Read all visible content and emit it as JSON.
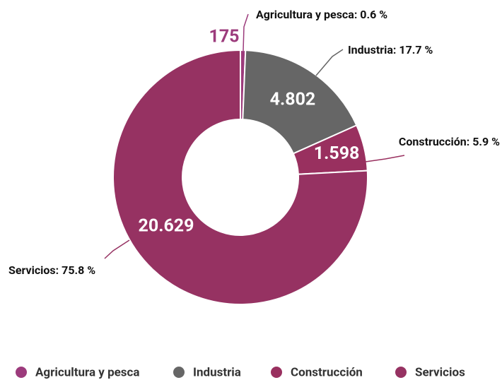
{
  "chart_data": {
    "type": "donut",
    "categories": [
      "Agricultura y pesca",
      "Industria",
      "Construcción",
      "Servicios"
    ],
    "values": [
      175,
      4802,
      1598,
      20629
    ],
    "value_labels": [
      "175",
      "4.802",
      "1.598",
      "20.629"
    ],
    "outer_labels": [
      "Agricultura y pesca: 0.6 %",
      "Industria: 17.7 %",
      "Construcción: 5.9 %",
      "Servicios: 75.8 %"
    ],
    "colors": [
      "#9c3b7c",
      "#666666",
      "#99305f",
      "#963262"
    ],
    "legend": "bottom"
  }
}
